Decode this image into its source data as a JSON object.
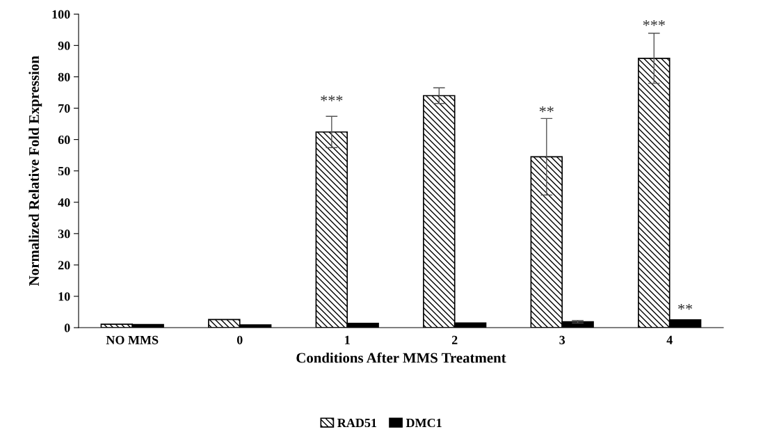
{
  "chart_data": {
    "type": "bar",
    "xlabel": "Conditions After MMS Treatment",
    "ylabel": "Normalized Relative Fold Expression",
    "categories": [
      "NO MMS",
      "0",
      "1",
      "2",
      "3",
      "4"
    ],
    "series": [
      {
        "name": "RAD51",
        "color": "#000000",
        "values": [
          1.1,
          2.6,
          62.4,
          74.0,
          54.5,
          85.9
        ],
        "errors": [
          null,
          null,
          5.0,
          2.5,
          12.2,
          8.0
        ]
      },
      {
        "name": "DMC1",
        "color": "#000000",
        "values": [
          1.0,
          0.9,
          1.4,
          1.5,
          1.9,
          2.5
        ],
        "errors": [
          null,
          null,
          null,
          null,
          0.4,
          null
        ]
      }
    ],
    "ylim": [
      0,
      100
    ],
    "yticks": [
      0,
      10,
      20,
      30,
      40,
      50,
      60,
      70,
      80,
      90,
      100
    ],
    "grid": false,
    "legend": "bottom",
    "annotations": [
      "***",
      "**",
      "***",
      "**"
    ]
  }
}
